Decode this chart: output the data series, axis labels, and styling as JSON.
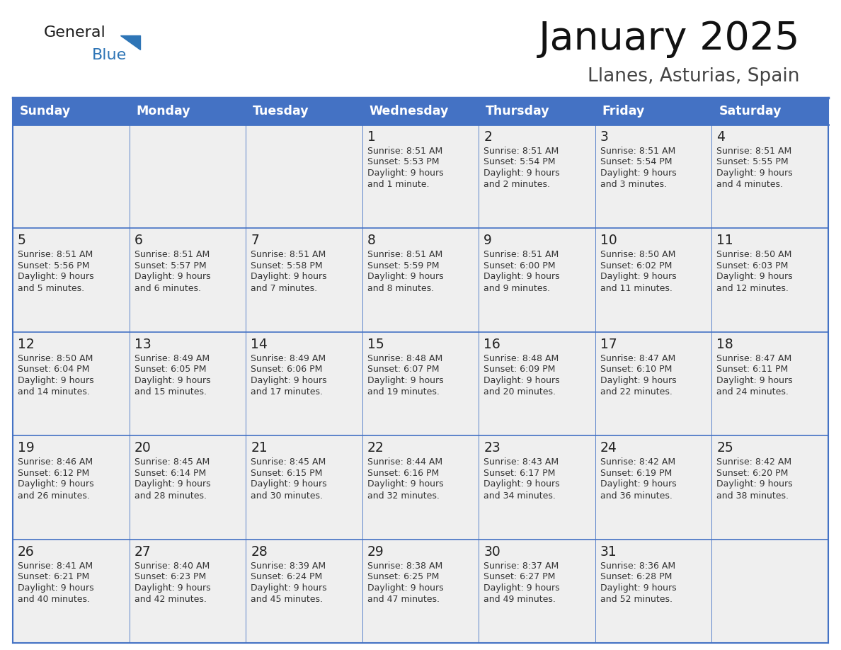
{
  "title": "January 2025",
  "subtitle": "Llanes, Asturias, Spain",
  "days_of_week": [
    "Sunday",
    "Monday",
    "Tuesday",
    "Wednesday",
    "Thursday",
    "Friday",
    "Saturday"
  ],
  "header_bg": "#4472C4",
  "header_text": "#FFFFFF",
  "cell_bg": "#EFEFEF",
  "border_color": "#4472C4",
  "text_color": "#333333",
  "calendar_data": [
    [
      {
        "day": "",
        "sunrise": "",
        "sunset": "",
        "daylight": ""
      },
      {
        "day": "",
        "sunrise": "",
        "sunset": "",
        "daylight": ""
      },
      {
        "day": "",
        "sunrise": "",
        "sunset": "",
        "daylight": ""
      },
      {
        "day": "1",
        "sunrise": "Sunrise: 8:51 AM",
        "sunset": "Sunset: 5:53 PM",
        "daylight": "Daylight: 9 hours\nand 1 minute."
      },
      {
        "day": "2",
        "sunrise": "Sunrise: 8:51 AM",
        "sunset": "Sunset: 5:54 PM",
        "daylight": "Daylight: 9 hours\nand 2 minutes."
      },
      {
        "day": "3",
        "sunrise": "Sunrise: 8:51 AM",
        "sunset": "Sunset: 5:54 PM",
        "daylight": "Daylight: 9 hours\nand 3 minutes."
      },
      {
        "day": "4",
        "sunrise": "Sunrise: 8:51 AM",
        "sunset": "Sunset: 5:55 PM",
        "daylight": "Daylight: 9 hours\nand 4 minutes."
      }
    ],
    [
      {
        "day": "5",
        "sunrise": "Sunrise: 8:51 AM",
        "sunset": "Sunset: 5:56 PM",
        "daylight": "Daylight: 9 hours\nand 5 minutes."
      },
      {
        "day": "6",
        "sunrise": "Sunrise: 8:51 AM",
        "sunset": "Sunset: 5:57 PM",
        "daylight": "Daylight: 9 hours\nand 6 minutes."
      },
      {
        "day": "7",
        "sunrise": "Sunrise: 8:51 AM",
        "sunset": "Sunset: 5:58 PM",
        "daylight": "Daylight: 9 hours\nand 7 minutes."
      },
      {
        "day": "8",
        "sunrise": "Sunrise: 8:51 AM",
        "sunset": "Sunset: 5:59 PM",
        "daylight": "Daylight: 9 hours\nand 8 minutes."
      },
      {
        "day": "9",
        "sunrise": "Sunrise: 8:51 AM",
        "sunset": "Sunset: 6:00 PM",
        "daylight": "Daylight: 9 hours\nand 9 minutes."
      },
      {
        "day": "10",
        "sunrise": "Sunrise: 8:50 AM",
        "sunset": "Sunset: 6:02 PM",
        "daylight": "Daylight: 9 hours\nand 11 minutes."
      },
      {
        "day": "11",
        "sunrise": "Sunrise: 8:50 AM",
        "sunset": "Sunset: 6:03 PM",
        "daylight": "Daylight: 9 hours\nand 12 minutes."
      }
    ],
    [
      {
        "day": "12",
        "sunrise": "Sunrise: 8:50 AM",
        "sunset": "Sunset: 6:04 PM",
        "daylight": "Daylight: 9 hours\nand 14 minutes."
      },
      {
        "day": "13",
        "sunrise": "Sunrise: 8:49 AM",
        "sunset": "Sunset: 6:05 PM",
        "daylight": "Daylight: 9 hours\nand 15 minutes."
      },
      {
        "day": "14",
        "sunrise": "Sunrise: 8:49 AM",
        "sunset": "Sunset: 6:06 PM",
        "daylight": "Daylight: 9 hours\nand 17 minutes."
      },
      {
        "day": "15",
        "sunrise": "Sunrise: 8:48 AM",
        "sunset": "Sunset: 6:07 PM",
        "daylight": "Daylight: 9 hours\nand 19 minutes."
      },
      {
        "day": "16",
        "sunrise": "Sunrise: 8:48 AM",
        "sunset": "Sunset: 6:09 PM",
        "daylight": "Daylight: 9 hours\nand 20 minutes."
      },
      {
        "day": "17",
        "sunrise": "Sunrise: 8:47 AM",
        "sunset": "Sunset: 6:10 PM",
        "daylight": "Daylight: 9 hours\nand 22 minutes."
      },
      {
        "day": "18",
        "sunrise": "Sunrise: 8:47 AM",
        "sunset": "Sunset: 6:11 PM",
        "daylight": "Daylight: 9 hours\nand 24 minutes."
      }
    ],
    [
      {
        "day": "19",
        "sunrise": "Sunrise: 8:46 AM",
        "sunset": "Sunset: 6:12 PM",
        "daylight": "Daylight: 9 hours\nand 26 minutes."
      },
      {
        "day": "20",
        "sunrise": "Sunrise: 8:45 AM",
        "sunset": "Sunset: 6:14 PM",
        "daylight": "Daylight: 9 hours\nand 28 minutes."
      },
      {
        "day": "21",
        "sunrise": "Sunrise: 8:45 AM",
        "sunset": "Sunset: 6:15 PM",
        "daylight": "Daylight: 9 hours\nand 30 minutes."
      },
      {
        "day": "22",
        "sunrise": "Sunrise: 8:44 AM",
        "sunset": "Sunset: 6:16 PM",
        "daylight": "Daylight: 9 hours\nand 32 minutes."
      },
      {
        "day": "23",
        "sunrise": "Sunrise: 8:43 AM",
        "sunset": "Sunset: 6:17 PM",
        "daylight": "Daylight: 9 hours\nand 34 minutes."
      },
      {
        "day": "24",
        "sunrise": "Sunrise: 8:42 AM",
        "sunset": "Sunset: 6:19 PM",
        "daylight": "Daylight: 9 hours\nand 36 minutes."
      },
      {
        "day": "25",
        "sunrise": "Sunrise: 8:42 AM",
        "sunset": "Sunset: 6:20 PM",
        "daylight": "Daylight: 9 hours\nand 38 minutes."
      }
    ],
    [
      {
        "day": "26",
        "sunrise": "Sunrise: 8:41 AM",
        "sunset": "Sunset: 6:21 PM",
        "daylight": "Daylight: 9 hours\nand 40 minutes."
      },
      {
        "day": "27",
        "sunrise": "Sunrise: 8:40 AM",
        "sunset": "Sunset: 6:23 PM",
        "daylight": "Daylight: 9 hours\nand 42 minutes."
      },
      {
        "day": "28",
        "sunrise": "Sunrise: 8:39 AM",
        "sunset": "Sunset: 6:24 PM",
        "daylight": "Daylight: 9 hours\nand 45 minutes."
      },
      {
        "day": "29",
        "sunrise": "Sunrise: 8:38 AM",
        "sunset": "Sunset: 6:25 PM",
        "daylight": "Daylight: 9 hours\nand 47 minutes."
      },
      {
        "day": "30",
        "sunrise": "Sunrise: 8:37 AM",
        "sunset": "Sunset: 6:27 PM",
        "daylight": "Daylight: 9 hours\nand 49 minutes."
      },
      {
        "day": "31",
        "sunrise": "Sunrise: 8:36 AM",
        "sunset": "Sunset: 6:28 PM",
        "daylight": "Daylight: 9 hours\nand 52 minutes."
      },
      {
        "day": "",
        "sunrise": "",
        "sunset": "",
        "daylight": ""
      }
    ]
  ],
  "logo_general_color": "#1a1a1a",
  "logo_blue_color": "#2E75B6",
  "logo_triangle_color": "#2E75B6"
}
